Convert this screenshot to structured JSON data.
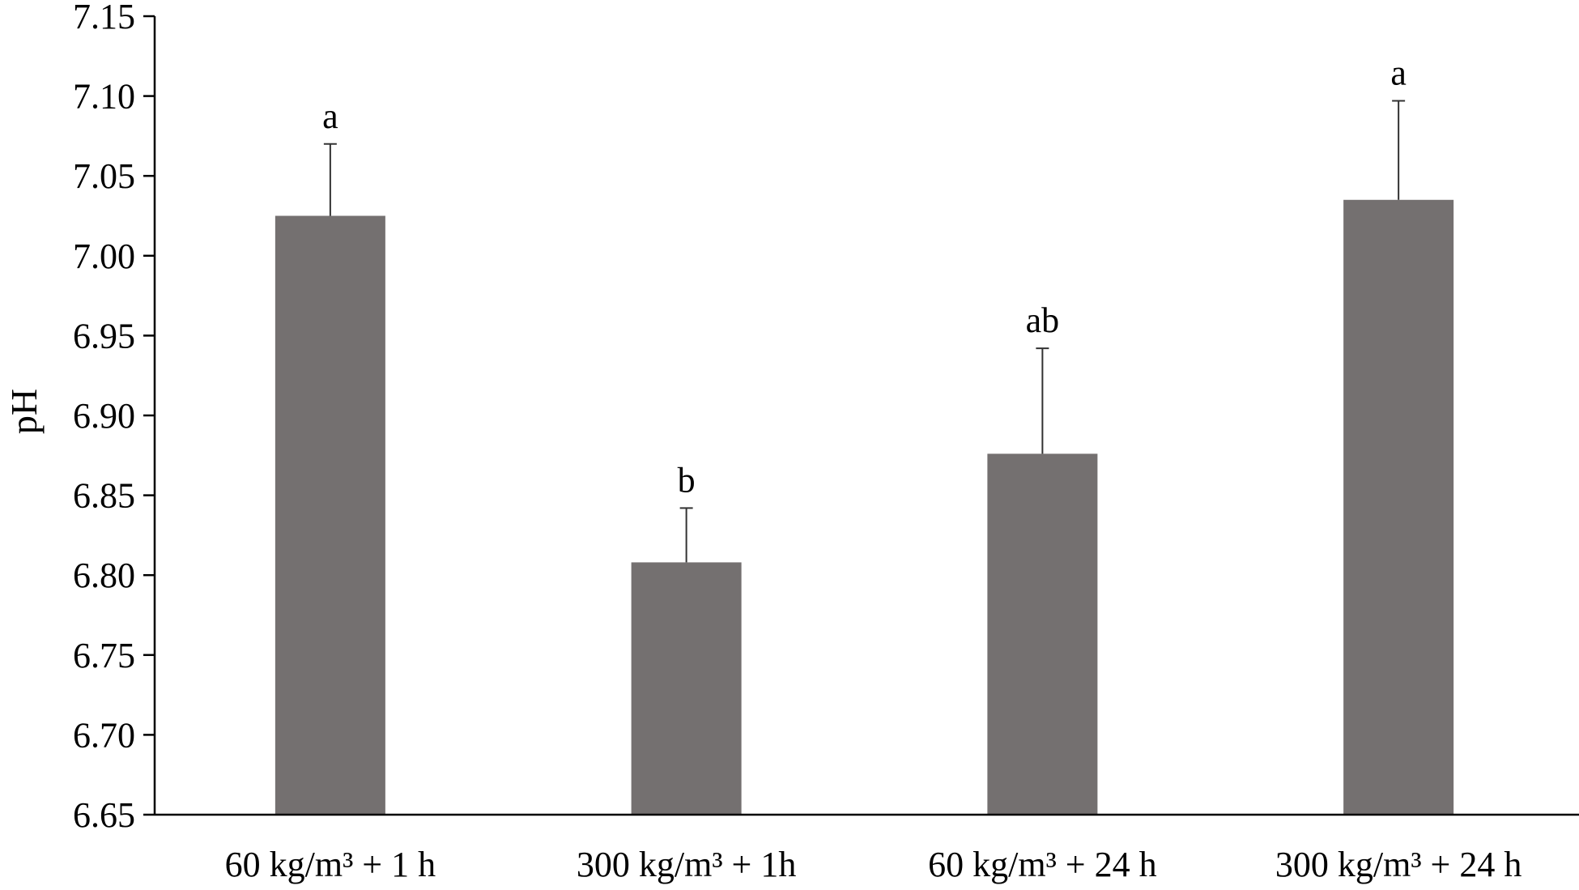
{
  "chart_data": {
    "type": "bar",
    "title": "",
    "xlabel": "",
    "ylabel": "pH",
    "ylim": [
      6.65,
      7.15
    ],
    "yticks": [
      "6.65",
      "6.70",
      "6.75",
      "6.80",
      "6.85",
      "6.90",
      "6.95",
      "7.00",
      "7.05",
      "7.10",
      "7.15"
    ],
    "grid": false,
    "categories": [
      "60 kg/m³ + 1 h",
      "300 kg/m³ + 1h",
      "60 kg/m³ + 24 h",
      "300 kg/m³ + 24 h"
    ],
    "values": [
      7.025,
      6.808,
      6.876,
      7.035
    ],
    "errors": [
      0.045,
      0.034,
      0.066,
      0.062
    ],
    "significance": [
      "a",
      "b",
      "ab",
      "a"
    ],
    "bar_color": "#747070"
  }
}
